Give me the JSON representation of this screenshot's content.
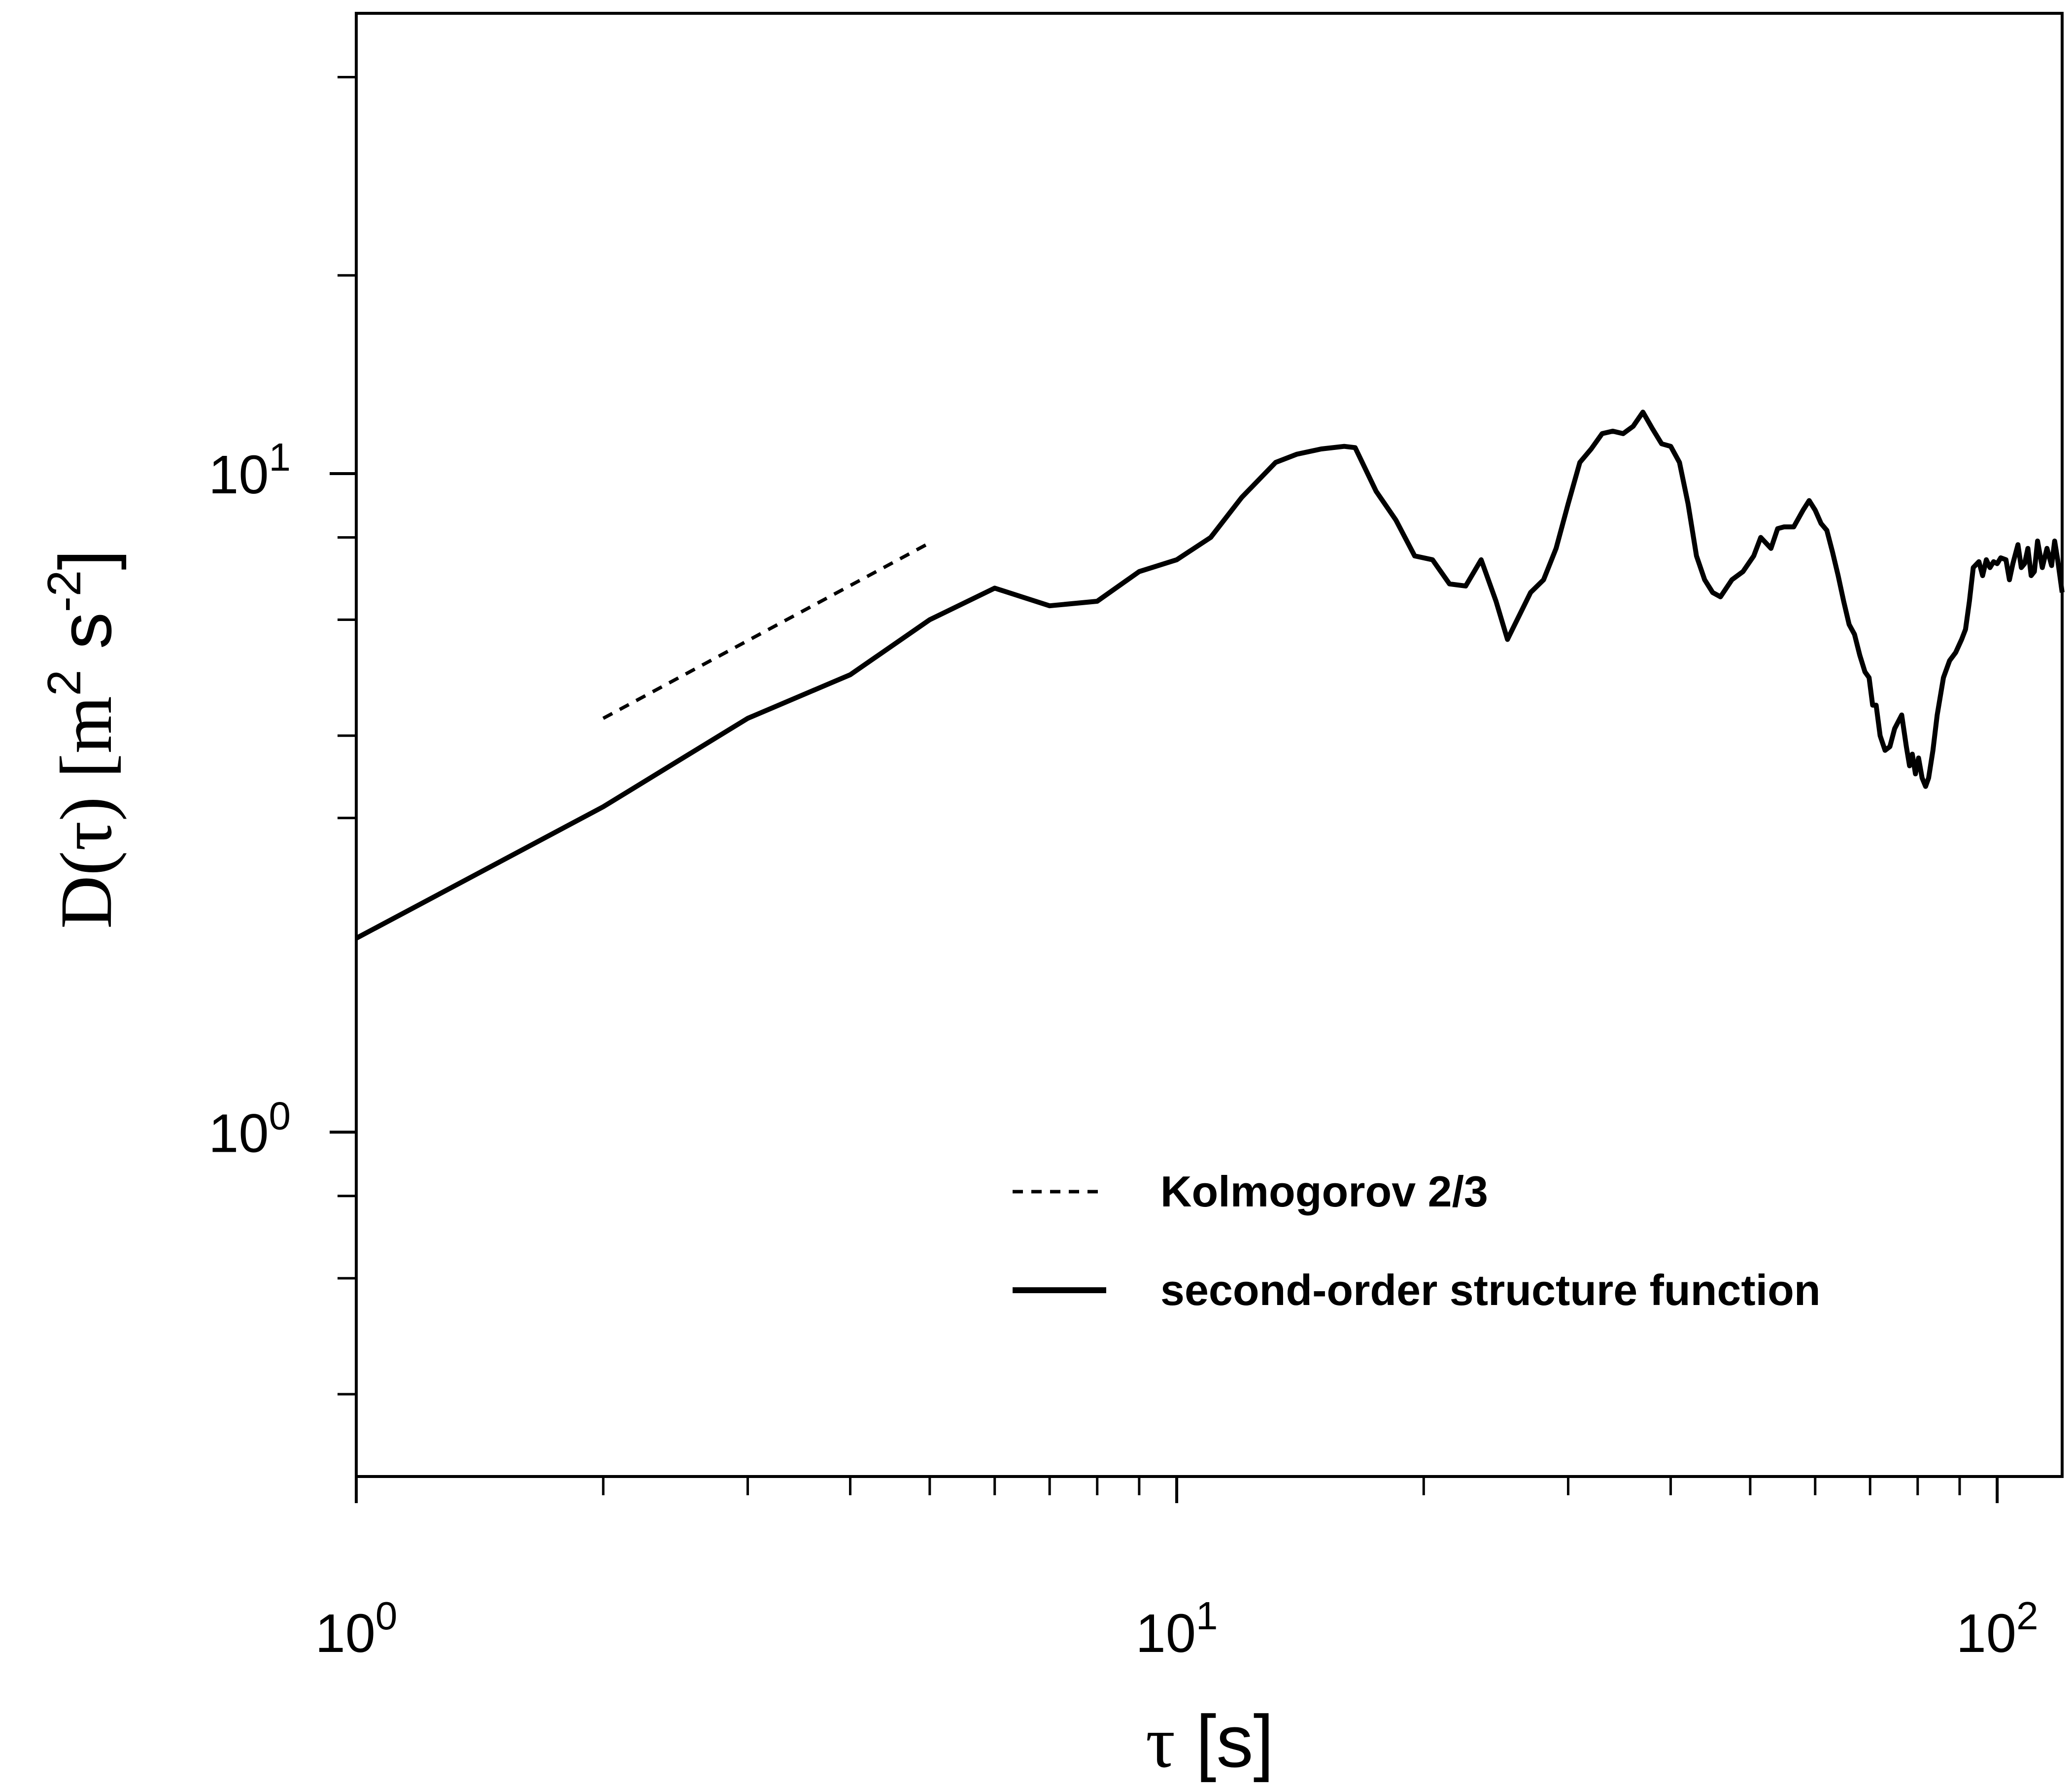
{
  "chart_data": {
    "type": "line",
    "x_scale": "log",
    "y_scale": "log",
    "xlim": [
      1,
      120
    ],
    "ylim": [
      0.3,
      50
    ],
    "x_ticks": [
      {
        "value": 1,
        "base": "10",
        "exp": "0"
      },
      {
        "value": 10,
        "base": "10",
        "exp": "1"
      },
      {
        "value": 100,
        "base": "10",
        "exp": "2"
      }
    ],
    "y_ticks": [
      {
        "value": 1,
        "base": "10",
        "exp": "0"
      },
      {
        "value": 10,
        "base": "10",
        "exp": "1"
      }
    ],
    "x_minor_ticks": [
      2,
      3,
      4,
      5,
      6,
      7,
      8,
      9,
      20,
      30,
      40,
      50,
      60,
      70,
      80,
      90
    ],
    "y_minor_ticks": [
      0.4,
      0.6,
      0.8,
      3,
      4,
      6,
      8,
      20,
      40
    ],
    "xlabel": {
      "symbol": "τ",
      "unit": "[s]"
    },
    "ylabel": {
      "prefix": "D(τ) [m",
      "exp1": "2",
      "mid": " s",
      "exp2": "-2",
      "suffix": "]"
    },
    "grid": false,
    "legend_position": "bottom-right",
    "series": [
      {
        "name": "Kolmogorov 2/3",
        "style": "dashed",
        "color": "#000000",
        "points": [
          [
            2.0,
            4.25
          ],
          [
            5.0,
            7.85
          ]
        ]
      },
      {
        "name": "second-order structure function",
        "style": "solid",
        "color": "#000000",
        "points": [
          [
            1.0,
            1.97
          ],
          [
            2.0,
            3.12
          ],
          [
            3.0,
            4.25
          ],
          [
            4.0,
            4.95
          ],
          [
            5.0,
            6.0
          ],
          [
            6.0,
            6.7
          ],
          [
            7.0,
            6.3
          ],
          [
            8.0,
            6.4
          ],
          [
            9.0,
            7.1
          ],
          [
            10.0,
            7.4
          ],
          [
            11.0,
            8.0
          ],
          [
            12.0,
            9.2
          ],
          [
            13.2,
            10.4
          ],
          [
            14.0,
            10.7
          ],
          [
            15.0,
            10.9
          ],
          [
            16.0,
            11.0
          ],
          [
            16.5,
            10.95
          ],
          [
            17.5,
            9.4
          ],
          [
            18.5,
            8.5
          ],
          [
            19.5,
            7.5
          ],
          [
            20.5,
            7.4
          ],
          [
            21.5,
            6.8
          ],
          [
            22.5,
            6.75
          ],
          [
            23.5,
            7.4
          ],
          [
            24.5,
            6.4
          ],
          [
            25.3,
            5.6
          ],
          [
            26.0,
            6.0
          ],
          [
            27.0,
            6.6
          ],
          [
            28.0,
            6.9
          ],
          [
            29.0,
            7.7
          ],
          [
            30.0,
            9.0
          ],
          [
            31.0,
            10.4
          ],
          [
            32.0,
            10.9
          ],
          [
            33.0,
            11.5
          ],
          [
            34.0,
            11.6
          ],
          [
            35.0,
            11.5
          ],
          [
            36.0,
            11.8
          ],
          [
            37.0,
            12.4
          ],
          [
            38.0,
            11.7
          ],
          [
            39.0,
            11.1
          ],
          [
            40.0,
            11.0
          ],
          [
            41.0,
            10.4
          ],
          [
            42.0,
            9.0
          ],
          [
            43.0,
            7.5
          ],
          [
            44.0,
            6.9
          ],
          [
            45.0,
            6.6
          ],
          [
            46.0,
            6.5
          ],
          [
            47.5,
            6.9
          ],
          [
            49.0,
            7.1
          ],
          [
            50.5,
            7.5
          ],
          [
            51.5,
            8.0
          ],
          [
            53.0,
            7.7
          ],
          [
            54.0,
            8.25
          ],
          [
            55.0,
            8.3
          ],
          [
            56.5,
            8.3
          ],
          [
            58.0,
            8.8
          ],
          [
            59.0,
            9.1
          ],
          [
            60.0,
            8.8
          ],
          [
            61.0,
            8.4
          ],
          [
            62.0,
            8.2
          ],
          [
            63.0,
            7.6
          ],
          [
            64.0,
            7.0
          ],
          [
            65.0,
            6.4
          ],
          [
            66.0,
            5.9
          ],
          [
            67.0,
            5.7
          ],
          [
            68.0,
            5.3
          ],
          [
            69.0,
            5.0
          ],
          [
            69.8,
            4.9
          ],
          [
            70.5,
            4.45
          ],
          [
            71.2,
            4.45
          ],
          [
            72.0,
            4.0
          ],
          [
            73.0,
            3.8
          ],
          [
            74.0,
            3.85
          ],
          [
            75.0,
            4.1
          ],
          [
            76.5,
            4.3
          ],
          [
            77.5,
            3.85
          ],
          [
            78.2,
            3.6
          ],
          [
            78.8,
            3.75
          ],
          [
            79.5,
            3.5
          ],
          [
            80.2,
            3.7
          ],
          [
            81.0,
            3.45
          ],
          [
            81.8,
            3.35
          ],
          [
            82.5,
            3.45
          ],
          [
            83.5,
            3.8
          ],
          [
            84.5,
            4.3
          ],
          [
            86.0,
            4.9
          ],
          [
            87.5,
            5.2
          ],
          [
            89.0,
            5.35
          ],
          [
            90.5,
            5.6
          ],
          [
            91.5,
            5.8
          ],
          [
            92.5,
            6.4
          ],
          [
            93.5,
            7.2
          ],
          [
            95.0,
            7.35
          ],
          [
            96.0,
            7.0
          ],
          [
            97.0,
            7.4
          ],
          [
            98.0,
            7.2
          ],
          [
            99.0,
            7.35
          ],
          [
            100.0,
            7.3
          ],
          [
            101.0,
            7.45
          ],
          [
            102.5,
            7.4
          ],
          [
            103.5,
            6.9
          ],
          [
            104.5,
            7.3
          ],
          [
            106.0,
            7.8
          ],
          [
            107.0,
            7.2
          ],
          [
            108.0,
            7.3
          ],
          [
            109.0,
            7.7
          ],
          [
            110.0,
            7.0
          ],
          [
            111.0,
            7.1
          ],
          [
            112.0,
            7.9
          ],
          [
            113.5,
            7.2
          ],
          [
            115.0,
            7.7
          ],
          [
            116.5,
            7.25
          ],
          [
            117.5,
            7.9
          ],
          [
            118.5,
            7.4
          ],
          [
            120.0,
            6.6
          ]
        ]
      }
    ]
  }
}
